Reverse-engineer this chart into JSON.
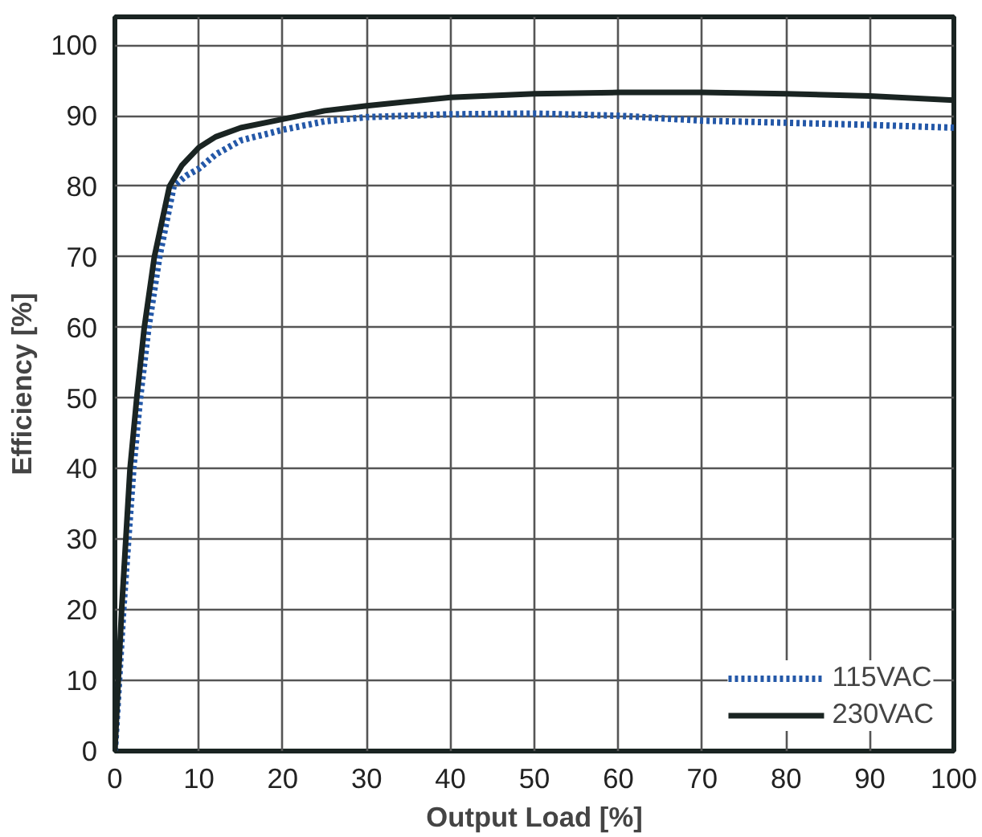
{
  "chart_data": {
    "type": "line",
    "xlabel": "Output Load [%]",
    "ylabel": "Efficiency [%]",
    "xlim": [
      0,
      100
    ],
    "ylim": [
      0,
      104
    ],
    "xticks": [
      0,
      10,
      20,
      30,
      40,
      50,
      60,
      70,
      80,
      90,
      100
    ],
    "yticks": [
      0,
      10,
      20,
      30,
      40,
      50,
      60,
      70,
      80,
      90,
      100
    ],
    "grid": true,
    "legend": "bottom right",
    "marker": "none",
    "series": [
      {
        "name": "115VAC",
        "color": "#2458a8",
        "line_style": "dotted",
        "x": [
          0,
          1,
          2.2,
          3,
          4,
          5.3,
          7,
          8.5,
          10,
          12,
          15,
          20,
          25,
          30,
          40,
          50,
          60,
          70,
          80,
          90,
          100
        ],
        "values": [
          0,
          20,
          40,
          50,
          60,
          70,
          80,
          81.5,
          82.5,
          84.5,
          86.5,
          88,
          89.2,
          89.8,
          90.2,
          90.3,
          90,
          89.3,
          89,
          88.7,
          88.3
        ]
      },
      {
        "name": "230VAC",
        "color": "#1a2422",
        "line_style": "solid",
        "x": [
          0,
          0.8,
          1.8,
          2.6,
          3.5,
          4.7,
          6.5,
          8,
          10,
          12,
          15,
          20,
          25,
          30,
          40,
          50,
          60,
          70,
          80,
          90,
          100
        ],
        "values": [
          0,
          20,
          40,
          50,
          60,
          70,
          80,
          83,
          85.5,
          87,
          88.3,
          89.5,
          90.7,
          91.4,
          92.6,
          93.1,
          93.3,
          93.3,
          93.1,
          92.8,
          92.2
        ]
      }
    ]
  }
}
